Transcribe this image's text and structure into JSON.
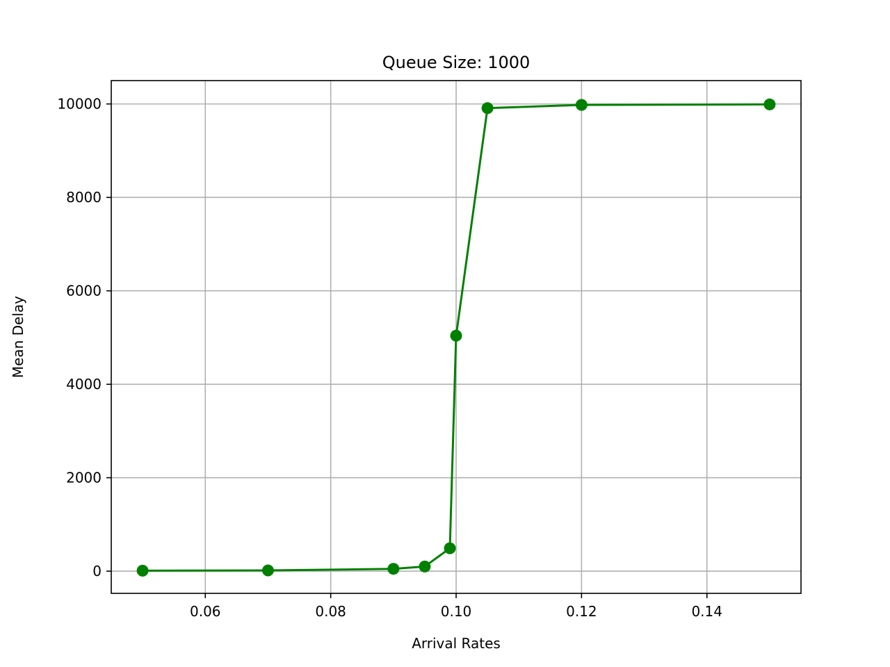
{
  "chart_data": {
    "type": "line",
    "title": "Queue Size: 1000",
    "xlabel": "Arrival Rates",
    "ylabel": "Mean Delay",
    "xlim": [
      0.045,
      0.155
    ],
    "ylim": [
      -475,
      10500
    ],
    "xticks": [
      0.06,
      0.08,
      0.1,
      0.12,
      0.14
    ],
    "xtick_labels": [
      "0.06",
      "0.08",
      "0.10",
      "0.12",
      "0.14"
    ],
    "yticks": [
      0,
      2000,
      4000,
      6000,
      8000,
      10000
    ],
    "ytick_labels": [
      "0",
      "2000",
      "4000",
      "6000",
      "8000",
      "10000"
    ],
    "grid": true,
    "series": [
      {
        "color": "#008000",
        "marker": "circle",
        "x": [
          0.05,
          0.07,
          0.09,
          0.095,
          0.099,
          0.1,
          0.105,
          0.12,
          0.15
        ],
        "y": [
          10,
          15,
          50,
          100,
          490,
          5040,
          9910,
          9980,
          9990
        ]
      }
    ]
  }
}
